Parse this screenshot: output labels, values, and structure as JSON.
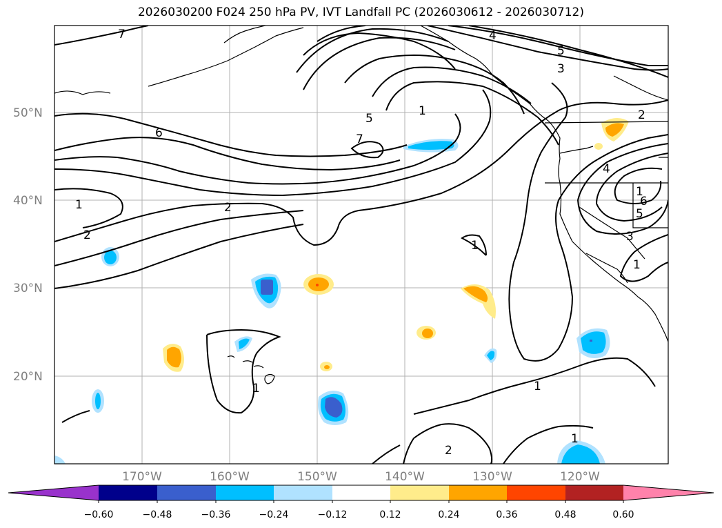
{
  "title": "2026030200 F024 250 hPa PV, IVT Landfall PC (2026030612 - 2026030712)",
  "latitude_labels": [
    "50°N",
    "40°N",
    "30°N",
    "20°N"
  ],
  "longitude_labels": [
    "170°W",
    "160°W",
    "150°W",
    "140°W",
    "130°W",
    "120°W"
  ],
  "pv_contour_labels": [
    "7",
    "4",
    "5",
    "3",
    "1",
    "5",
    "7",
    "6",
    "2",
    "1",
    "2",
    "2",
    "4",
    "1",
    "6",
    "5",
    "3",
    "1",
    "1",
    "1",
    "1",
    "2",
    "1"
  ],
  "colorbar": {
    "tick_labels": [
      "−0.60",
      "−0.48",
      "−0.36",
      "−0.24",
      "−0.12",
      "0.12",
      "0.24",
      "0.36",
      "0.48",
      "0.60"
    ],
    "colors": [
      "#9932CC",
      "#00008B",
      "#3A5FCD",
      "#00BFFF",
      "#B0E2FF",
      "#FFFFFF",
      "#FFEC8B",
      "#FFA500",
      "#FF4500",
      "#B22222",
      "#FF82AB"
    ]
  }
}
